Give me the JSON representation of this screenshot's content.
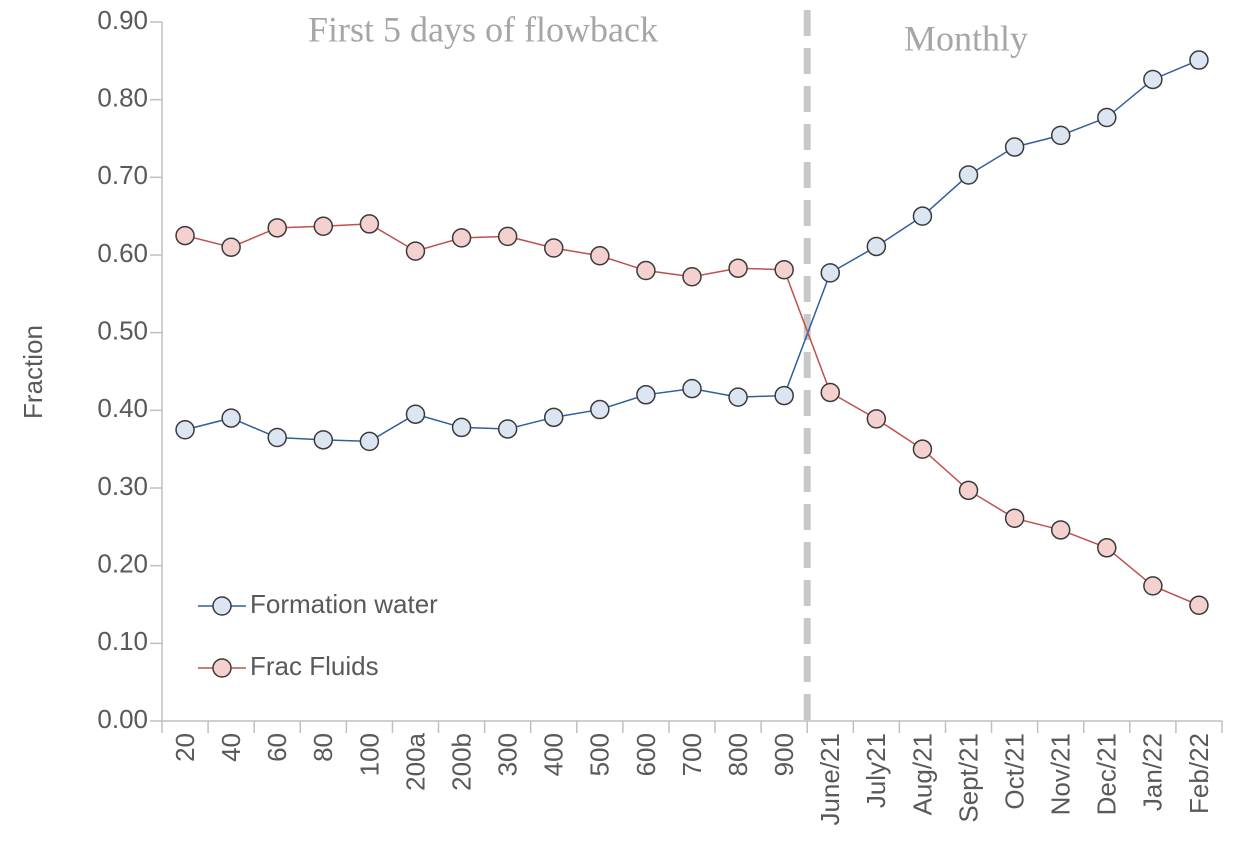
{
  "chart_data": {
    "type": "line",
    "annotations": [
      "First 5 days of flowback",
      "Monthly"
    ],
    "ylabel": "Fraction",
    "categories": [
      "20",
      "40",
      "60",
      "80",
      "100",
      "200a",
      "200b",
      "300",
      "400",
      "500",
      "600",
      "700",
      "800",
      "900",
      "June/21",
      "July21",
      "Aug/21",
      "Sept/21",
      "Oct/21",
      "Nov/21",
      "Dec/21",
      "Jan/22",
      "Feb/22"
    ],
    "series": [
      {
        "name": "Formation water",
        "color": "#2e5f9e",
        "fill": "#dce6f2",
        "values": [
          0.375,
          0.39,
          0.365,
          0.362,
          0.36,
          0.395,
          0.378,
          0.376,
          0.391,
          0.401,
          0.42,
          0.428,
          0.417,
          0.419,
          0.577,
          0.611,
          0.65,
          0.703,
          0.739,
          0.754,
          0.777,
          0.826,
          0.851
        ]
      },
      {
        "name": "Frac Fluids",
        "color": "#c0504d",
        "fill": "#f4d0cf",
        "values": [
          0.625,
          0.61,
          0.635,
          0.637,
          0.64,
          0.605,
          0.622,
          0.624,
          0.609,
          0.599,
          0.58,
          0.572,
          0.583,
          0.581,
          0.423,
          0.389,
          0.35,
          0.297,
          0.261,
          0.246,
          0.223,
          0.174,
          0.149
        ]
      }
    ],
    "ylim": [
      0,
      0.9
    ],
    "yticks": [
      {
        "value": 0,
        "label": "0.00"
      },
      {
        "value": 0.1,
        "label": "0.10"
      },
      {
        "value": 0.2,
        "label": "0.20"
      },
      {
        "value": 0.3,
        "label": "0.30"
      },
      {
        "value": 0.4,
        "label": "0.40"
      },
      {
        "value": 0.5,
        "label": "0.50"
      },
      {
        "value": 0.6,
        "label": "0.60"
      },
      {
        "value": 0.7,
        "label": "0.70"
      },
      {
        "value": 0.8,
        "label": "0.80"
      },
      {
        "value": 0.9,
        "label": "0.90"
      }
    ],
    "legend": "lower left"
  }
}
